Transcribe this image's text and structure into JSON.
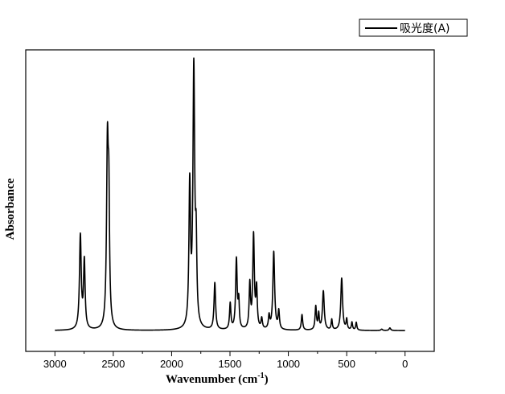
{
  "chart_data": {
    "type": "line",
    "xlabel": "Wavenumber (cm",
    "xlabel_sup": "-1",
    "xlabel_end": ")",
    "ylabel": "Absorbance",
    "xlim": [
      3250,
      -250
    ],
    "ylim": [
      -0.08,
      1.08
    ],
    "x_reversed": true,
    "x_ticks": [
      3000,
      2500,
      2000,
      1500,
      1000,
      500,
      0
    ],
    "x_tick_labels": [
      "3000",
      "2500",
      "2000",
      "1500",
      "1000",
      "500",
      "0"
    ],
    "y_ticks_visible": false,
    "grid": false,
    "legend": "top-right",
    "baseline": 0.0,
    "series": [
      {
        "name": "吸光度(A)",
        "color": "#000000",
        "peaks": [
          {
            "x": 2782,
            "h": 0.36,
            "w": 9
          },
          {
            "x": 2748,
            "h": 0.26,
            "w": 8
          },
          {
            "x": 2550,
            "h": 0.69,
            "w": 9
          },
          {
            "x": 2538,
            "h": 0.42,
            "w": 7
          },
          {
            "x": 1845,
            "h": 0.54,
            "w": 8
          },
          {
            "x": 1810,
            "h": 0.99,
            "w": 9
          },
          {
            "x": 1790,
            "h": 0.28,
            "w": 7
          },
          {
            "x": 1630,
            "h": 0.18,
            "w": 8
          },
          {
            "x": 1498,
            "h": 0.1,
            "w": 7
          },
          {
            "x": 1445,
            "h": 0.27,
            "w": 8
          },
          {
            "x": 1425,
            "h": 0.1,
            "w": 6
          },
          {
            "x": 1330,
            "h": 0.17,
            "w": 7
          },
          {
            "x": 1298,
            "h": 0.36,
            "w": 8
          },
          {
            "x": 1272,
            "h": 0.15,
            "w": 7
          },
          {
            "x": 1228,
            "h": 0.04,
            "w": 7
          },
          {
            "x": 1165,
            "h": 0.05,
            "w": 7
          },
          {
            "x": 1125,
            "h": 0.3,
            "w": 9
          },
          {
            "x": 1082,
            "h": 0.07,
            "w": 7
          },
          {
            "x": 883,
            "h": 0.06,
            "w": 7
          },
          {
            "x": 765,
            "h": 0.09,
            "w": 7
          },
          {
            "x": 740,
            "h": 0.06,
            "w": 6
          },
          {
            "x": 700,
            "h": 0.15,
            "w": 9
          },
          {
            "x": 628,
            "h": 0.04,
            "w": 6
          },
          {
            "x": 543,
            "h": 0.2,
            "w": 9
          },
          {
            "x": 500,
            "h": 0.04,
            "w": 6
          },
          {
            "x": 455,
            "h": 0.03,
            "w": 6
          },
          {
            "x": 418,
            "h": 0.03,
            "w": 6
          },
          {
            "x": 200,
            "h": 0.005,
            "w": 8
          },
          {
            "x": 130,
            "h": 0.01,
            "w": 8
          }
        ],
        "x_range": [
          3000,
          0
        ]
      }
    ]
  }
}
